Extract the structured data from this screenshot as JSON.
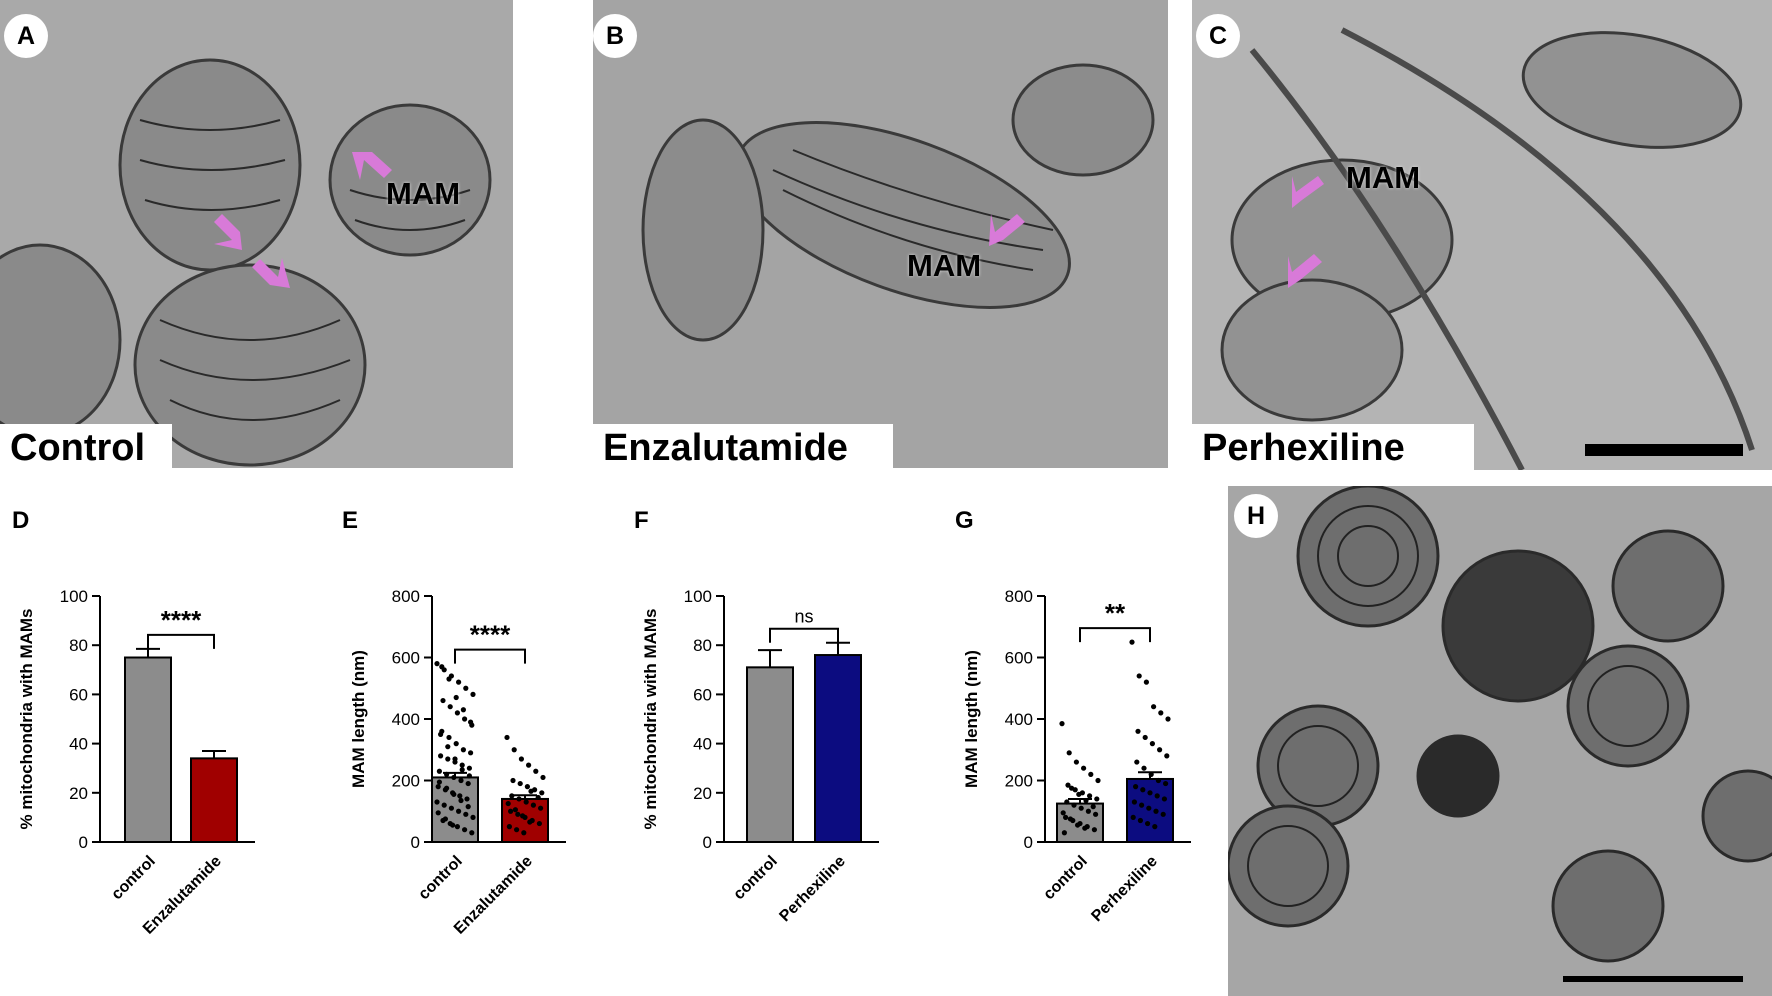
{
  "panels": {
    "A": {
      "letter": "A",
      "condition": "Control",
      "mam": "MAM"
    },
    "B": {
      "letter": "B",
      "condition": "Enzalutamide",
      "mam": "MAM"
    },
    "C": {
      "letter": "C",
      "condition": "Perhexiline",
      "mam": "MAM"
    },
    "H": {
      "letter": "H"
    }
  },
  "colors": {
    "control": "#8c8c8c",
    "enzalutamide": "#a00000",
    "perhexiline": "#0c0c80",
    "arrow": "#d87ad8"
  },
  "chart_data": [
    {
      "panel": "D",
      "type": "bar",
      "ylabel": "% mitochondria with MAMs",
      "ylim": [
        0,
        100
      ],
      "yticks": [
        "0",
        "20",
        "40",
        "60",
        "80",
        "100"
      ],
      "categories": [
        "control",
        "Enzalutamide"
      ],
      "values": [
        75,
        34
      ],
      "errors": [
        3.5,
        3
      ],
      "sig": "****"
    },
    {
      "panel": "E",
      "type": "bar",
      "ylabel": "MAM length (nm)",
      "ylim": [
        0,
        800
      ],
      "yticks": [
        "0",
        "200",
        "400",
        "600",
        "800"
      ],
      "categories": [
        "control",
        "Enzalutamide"
      ],
      "values": [
        210,
        140
      ],
      "errors": [
        15,
        12
      ],
      "sig": "****",
      "points": [
        580,
        560,
        540,
        520,
        500,
        480,
        460,
        440,
        420,
        400,
        380,
        360,
        340,
        320,
        300,
        290,
        280,
        270,
        260,
        250,
        240,
        230,
        220,
        210,
        200,
        190,
        180,
        170,
        160,
        150,
        140,
        130,
        120,
        110,
        100,
        90,
        80,
        70,
        60,
        50,
        40,
        30,
        570,
        530,
        470,
        430,
        390,
        350,
        310,
        270,
        235,
        215,
        195,
        175,
        155,
        135,
        115,
        95,
        75,
        55
      ],
      "points2": [
        340,
        300,
        270,
        250,
        230,
        210,
        200,
        190,
        180,
        170,
        160,
        150,
        140,
        130,
        120,
        110,
        100,
        90,
        80,
        70,
        60,
        50,
        40,
        30,
        165,
        145,
        125,
        105,
        85,
        65
      ]
    },
    {
      "panel": "F",
      "type": "bar",
      "ylabel": "% mitochondria with MAMs",
      "ylim": [
        0,
        100
      ],
      "yticks": [
        "0",
        "20",
        "40",
        "60",
        "80",
        "100"
      ],
      "categories": [
        "control",
        "Perhexiline"
      ],
      "values": [
        71,
        76
      ],
      "errors": [
        7,
        5
      ],
      "sig": "ns"
    },
    {
      "panel": "G",
      "type": "bar",
      "ylabel": "MAM length (nm)",
      "ylim": [
        0,
        800
      ],
      "yticks": [
        "0",
        "200",
        "400",
        "600",
        "800"
      ],
      "categories": [
        "control",
        "Perhexiline"
      ],
      "values": [
        125,
        205
      ],
      "errors": [
        15,
        22
      ],
      "sig": "**",
      "points": [
        385,
        290,
        260,
        240,
        220,
        200,
        185,
        170,
        160,
        150,
        140,
        130,
        120,
        110,
        100,
        90,
        80,
        70,
        60,
        50,
        40,
        30,
        175,
        155,
        135,
        115,
        95,
        75,
        55,
        45
      ],
      "points2": [
        650,
        540,
        520,
        440,
        420,
        400,
        360,
        340,
        320,
        300,
        280,
        260,
        240,
        220,
        200,
        190,
        180,
        170,
        160,
        150,
        140,
        130,
        120,
        110,
        100,
        90,
        80,
        70,
        60,
        50
      ]
    }
  ]
}
